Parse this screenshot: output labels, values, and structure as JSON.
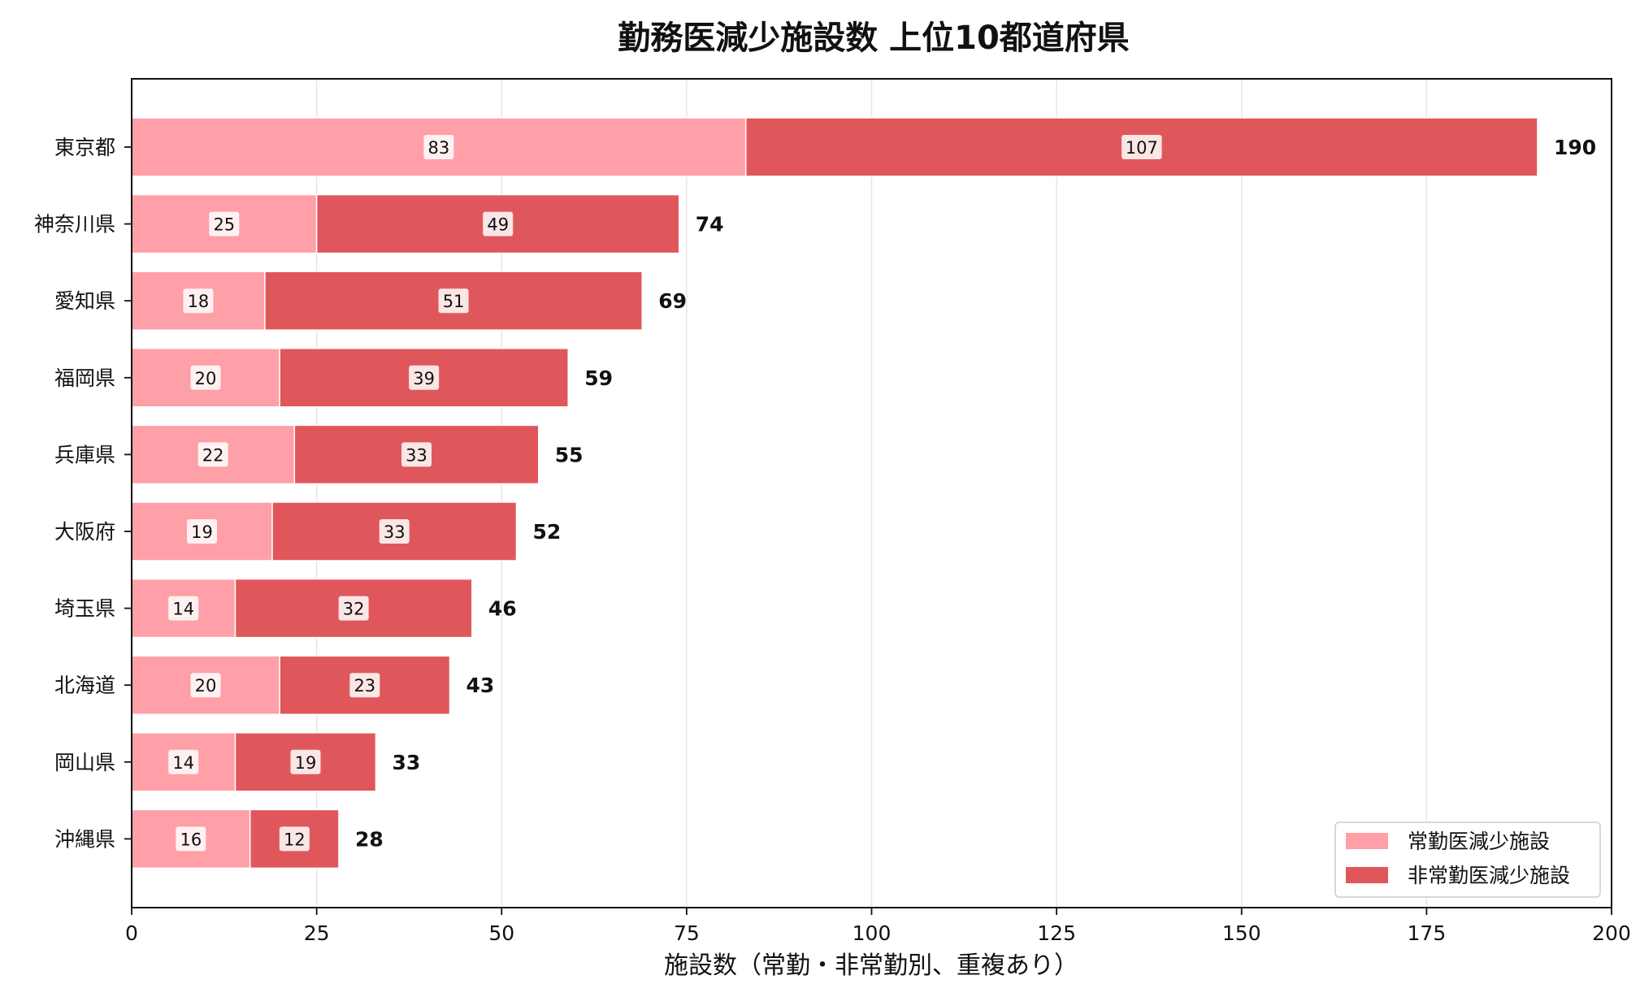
{
  "chart_data": {
    "type": "bar",
    "orientation": "horizontal",
    "stacked": true,
    "title": "勤務医減少施設数 上位10都道府県",
    "xlabel": "施設数（常勤・非常勤別、重複あり）",
    "ylabel": "",
    "xlim": [
      0,
      200
    ],
    "xticks": [
      0,
      25,
      50,
      75,
      100,
      125,
      150,
      175,
      200
    ],
    "grid": "x",
    "legend_position": "bottom-right",
    "categories": [
      "東京都",
      "神奈川県",
      "愛知県",
      "福岡県",
      "兵庫県",
      "大阪府",
      "埼玉県",
      "北海道",
      "岡山県",
      "沖縄県"
    ],
    "series": [
      {
        "name": "常勤医減少施設",
        "color": "#ff9fa7",
        "values": [
          83,
          25,
          18,
          20,
          22,
          19,
          14,
          20,
          14,
          16
        ]
      },
      {
        "name": "非常勤医減少施設",
        "color": "#e0575b",
        "values": [
          107,
          49,
          51,
          39,
          33,
          33,
          32,
          23,
          19,
          12
        ]
      }
    ],
    "totals": [
      190,
      74,
      69,
      59,
      55,
      52,
      46,
      43,
      33,
      28
    ]
  }
}
